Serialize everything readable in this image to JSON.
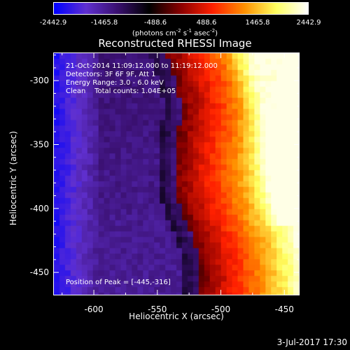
{
  "colorbar": {
    "ticks": [
      "-2442.9",
      "-1465.8",
      "-488.6",
      "488.6",
      "1465.8",
      "2442.9"
    ],
    "units_prefix": "(photons cm",
    "units_exp1": "-2",
    "units_mid": " s",
    "units_exp2": "-1",
    "units_mid2": " asec",
    "units_exp3": "-2",
    "units_suffix": ")"
  },
  "title": "Reconstructed RHESSI Image",
  "info": {
    "time": "21-Oct-2014 11:09:12.000 to 11:19:12.000",
    "detectors": "Detectors: 3F 6F 9F, Att 1",
    "energy": "Energy Range: 3.0 - 6.0 keV",
    "clean": "Clean    Total counts: 1.04E+05",
    "peak": "Position of Peak = [-445,-316]"
  },
  "footer": "3-Jul-2017 17:30",
  "chart_data": {
    "type": "heatmap",
    "title": "Reconstructed RHESSI Image",
    "xlabel": "Heliocentric X (arcsec)",
    "ylabel": "Heliocentric Y (arcsec)",
    "xlim": [
      -632,
      -438
    ],
    "ylim": [
      -468,
      -278
    ],
    "x_ticks": [
      -600,
      -550,
      -500,
      -450
    ],
    "x_tick_labels": [
      "-600",
      "-550",
      "-500",
      "-450"
    ],
    "y_ticks": [
      -300,
      -350,
      -400,
      -450
    ],
    "y_tick_labels": [
      "-300",
      "-350",
      "-400",
      "-450"
    ],
    "color_scale": {
      "min": -2442.9,
      "max": 2442.9
    },
    "colormap": [
      "#0000ff",
      "#6030d0",
      "#3a1070",
      "#000000",
      "#8a0000",
      "#ff2000",
      "#ff9000",
      "#ffff60",
      "#ffffff"
    ],
    "peak": {
      "x": -445,
      "y": -316
    }
  }
}
